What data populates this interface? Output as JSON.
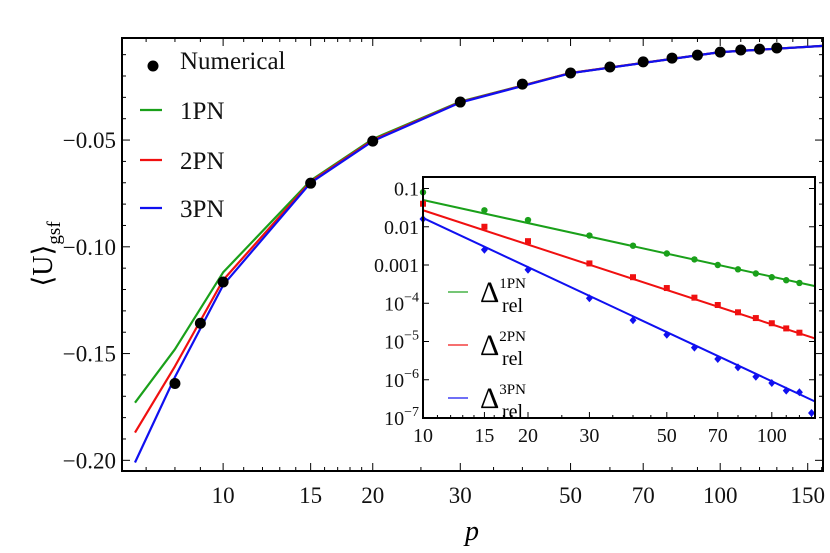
{
  "chart_data": [
    {
      "type": "line",
      "xlabel": "p",
      "ylabel": "⟨U⟩",
      "ylabel_sub": "gsf",
      "xscale": "log",
      "xlim": [
        6.26,
        161
      ],
      "ylim": [
        -0.205,
        -0.0022
      ],
      "xticks": [
        10,
        15,
        20,
        30,
        50,
        70,
        100,
        150
      ],
      "xtick_labels": [
        "10",
        "15",
        "20",
        "30",
        "50",
        "70",
        "100",
        "150"
      ],
      "yticks": [
        -0.05,
        -0.1,
        -0.15,
        -0.2
      ],
      "ytick_labels": [
        "−0.05",
        "−0.10",
        "−0.15",
        "−0.20"
      ],
      "grid": false,
      "legend_position": "top-left",
      "series": [
        {
          "name": "Numerical",
          "kind": "scatter",
          "color": "#000000",
          "x": [
            8,
            9,
            10,
            15,
            20,
            30,
            40,
            50,
            60,
            70,
            80,
            90,
            100,
            110,
            120,
            130
          ],
          "y": [
            -0.164,
            -0.1358,
            -0.1165,
            -0.0702,
            -0.0505,
            -0.0322,
            -0.0238,
            -0.0186,
            -0.0158,
            -0.0134,
            -0.0116,
            -0.0102,
            -0.0088,
            -0.0078,
            -0.0074,
            -0.0069
          ]
        },
        {
          "name": "1PN",
          "kind": "line",
          "color": "#1aa01a",
          "x": [
            6.65,
            8,
            10,
            15,
            20,
            30,
            50,
            100,
            161
          ],
          "y": [
            -0.173,
            -0.148,
            -0.112,
            -0.069,
            -0.0495,
            -0.032,
            -0.0186,
            -0.0088,
            -0.0059
          ]
        },
        {
          "name": "2PN",
          "kind": "line",
          "color": "#f01010",
          "x": [
            6.65,
            8,
            10,
            15,
            20,
            30,
            50,
            100,
            161
          ],
          "y": [
            -0.187,
            -0.156,
            -0.1156,
            -0.0695,
            -0.05,
            -0.0322,
            -0.0186,
            -0.0088,
            -0.0059
          ]
        },
        {
          "name": "3PN",
          "kind": "line",
          "color": "#1010f0",
          "x": [
            6.65,
            8,
            10,
            15,
            20,
            30,
            50,
            100,
            161
          ],
          "y": [
            -0.201,
            -0.161,
            -0.118,
            -0.07,
            -0.0505,
            -0.0324,
            -0.0187,
            -0.0088,
            -0.0059
          ]
        }
      ]
    },
    {
      "type": "line",
      "inset": true,
      "xscale": "log",
      "yscale": "log",
      "xlim": [
        10,
        133
      ],
      "ylim": [
        1e-07,
        0.2
      ],
      "xticks": [
        10,
        15,
        20,
        30,
        50,
        70,
        100
      ],
      "xtick_labels": [
        "10",
        "15",
        "20",
        "30",
        "50",
        "70",
        "100"
      ],
      "yticks": [
        0.1,
        0.01,
        0.001,
        0.0001,
        1e-05,
        1e-06,
        1e-07
      ],
      "ytick_labels": [
        {
          "base": "0.1",
          "exp": ""
        },
        {
          "base": "0.01",
          "exp": ""
        },
        {
          "base": "0.001",
          "exp": ""
        },
        {
          "base": "10",
          "exp": "−4"
        },
        {
          "base": "10",
          "exp": "−5"
        },
        {
          "base": "10",
          "exp": "−6"
        },
        {
          "base": "10",
          "exp": "−7"
        }
      ],
      "legend_position": "left",
      "series": [
        {
          "name": "Δ",
          "sup": "1PN",
          "sub": "rel",
          "color": "#1aa01a",
          "marker": "circle",
          "x": [
            10,
            15,
            20,
            30,
            40,
            50,
            60,
            70,
            80,
            90,
            100,
            110,
            120
          ],
          "y": [
            0.08,
            0.027,
            0.015,
            0.0059,
            0.0032,
            0.002,
            0.0014,
            0.001,
            0.00077,
            0.0006,
            0.00048,
            0.0004,
            0.00034
          ],
          "fit_x": [
            10,
            133
          ],
          "fit_y": [
            0.05,
            0.00028
          ]
        },
        {
          "name": "Δ",
          "sup": "2PN",
          "sub": "rel",
          "color": "#f01010",
          "marker": "square",
          "x": [
            10,
            15,
            20,
            30,
            40,
            50,
            60,
            70,
            80,
            90,
            100,
            110,
            120
          ],
          "y": [
            0.04,
            0.01,
            0.0042,
            0.0011,
            0.00048,
            0.00025,
            0.00014,
            9e-05,
            5.8e-05,
            4.1e-05,
            3e-05,
            2.2e-05,
            1.7e-05
          ],
          "fit_x": [
            10,
            133
          ],
          "fit_y": [
            0.027,
            1.2e-05
          ]
        },
        {
          "name": "Δ",
          "sup": "3PN",
          "sub": "rel",
          "color": "#1010f0",
          "marker": "diamond",
          "x": [
            10,
            15,
            20,
            30,
            40,
            50,
            60,
            70,
            80,
            90,
            100,
            110,
            120,
            130
          ],
          "y": [
            0.016,
            0.0025,
            0.00075,
            0.000135,
            3.6e-05,
            1.5e-05,
            6.9e-06,
            3.5e-06,
            2.1e-06,
            1.2e-06,
            8.2e-07,
            5.2e-07,
            4.7e-07,
            1.35e-07
          ],
          "fit_x": [
            10,
            133
          ],
          "fit_y": [
            0.017,
            2.7e-07
          ]
        }
      ]
    }
  ]
}
